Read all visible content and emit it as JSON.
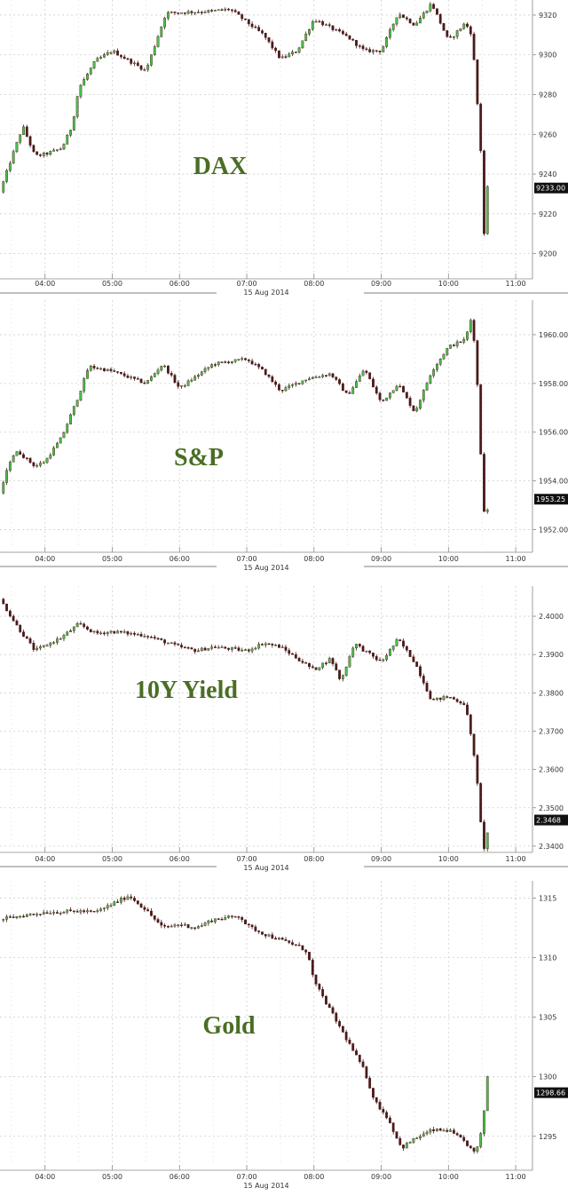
{
  "colors": {
    "up": "#46c24a",
    "down": "#4a1a1a",
    "grid": "#cfcfcf",
    "title": "#4a6e25",
    "axis": "#888888",
    "last_box": "#111111"
  },
  "chart_data": [
    {
      "type": "candlestick",
      "title": "DAX",
      "date_label": "15 Aug 2014",
      "x_ticks": [
        "04:00",
        "05:00",
        "06:00",
        "07:00",
        "08:00",
        "09:00",
        "10:00",
        "11:00"
      ],
      "y_ticks": [
        "9200",
        "9220",
        "9240",
        "9260",
        "9280",
        "9300",
        "9320"
      ],
      "ylim": [
        9190,
        9324
      ],
      "last_value_label": "9233.00",
      "last_value": 9233,
      "grid": true,
      "anchors": [
        [
          3.33,
          9231
        ],
        [
          3.5,
          9248
        ],
        [
          3.67,
          9264
        ],
        [
          3.85,
          9249
        ],
        [
          4.0,
          9250
        ],
        [
          4.25,
          9253
        ],
        [
          4.4,
          9264
        ],
        [
          4.5,
          9283
        ],
        [
          4.75,
          9297
        ],
        [
          5.0,
          9302
        ],
        [
          5.5,
          9292
        ],
        [
          5.8,
          9321
        ],
        [
          6.5,
          9322
        ],
        [
          6.75,
          9323
        ],
        [
          7.25,
          9310
        ],
        [
          7.5,
          9298
        ],
        [
          7.75,
          9302
        ],
        [
          8.0,
          9318
        ],
        [
          8.5,
          9309
        ],
        [
          8.75,
          9302
        ],
        [
          9.0,
          9302
        ],
        [
          9.25,
          9321
        ],
        [
          9.5,
          9315
        ],
        [
          9.75,
          9326
        ],
        [
          10.0,
          9307
        ],
        [
          10.25,
          9316
        ],
        [
          10.35,
          9310
        ],
        [
          10.42,
          9280
        ],
        [
          10.48,
          9252
        ],
        [
          10.53,
          9210
        ],
        [
          10.58,
          9233
        ]
      ]
    },
    {
      "type": "candlestick",
      "title": "S&P",
      "date_label": "15 Aug 2014",
      "x_ticks": [
        "04:00",
        "05:00",
        "06:00",
        "07:00",
        "08:00",
        "09:00",
        "10:00",
        "11:00"
      ],
      "y_ticks": [
        "1952.00",
        "1954.00",
        "1956.00",
        "1958.00",
        "1960.00"
      ],
      "ylim": [
        1951.0,
        1961.2
      ],
      "last_value_label": "1953.25",
      "last_value": 1953.25,
      "grid": true,
      "anchors": [
        [
          3.33,
          1953.5
        ],
        [
          3.5,
          1955.0
        ],
        [
          3.6,
          1955.2
        ],
        [
          3.85,
          1954.6
        ],
        [
          4.0,
          1954.8
        ],
        [
          4.25,
          1955.8
        ],
        [
          4.5,
          1957.5
        ],
        [
          4.65,
          1958.7
        ],
        [
          5.0,
          1958.5
        ],
        [
          5.5,
          1958.0
        ],
        [
          5.75,
          1958.8
        ],
        [
          6.0,
          1957.8
        ],
        [
          6.25,
          1958.3
        ],
        [
          6.5,
          1958.8
        ],
        [
          7.0,
          1959.0
        ],
        [
          7.25,
          1958.5
        ],
        [
          7.5,
          1957.7
        ],
        [
          7.9,
          1958.2
        ],
        [
          8.25,
          1958.4
        ],
        [
          8.5,
          1957.5
        ],
        [
          8.75,
          1958.6
        ],
        [
          9.0,
          1957.2
        ],
        [
          9.25,
          1958.0
        ],
        [
          9.5,
          1956.8
        ],
        [
          9.75,
          1958.5
        ],
        [
          10.0,
          1959.5
        ],
        [
          10.25,
          1959.8
        ],
        [
          10.35,
          1960.8
        ],
        [
          10.42,
          1958.5
        ],
        [
          10.5,
          1954.0
        ],
        [
          10.55,
          1952.0
        ],
        [
          10.6,
          1953.3
        ]
      ]
    },
    {
      "type": "candlestick",
      "title": "10Y Yield",
      "date_label": "15 Aug 2014",
      "x_ticks": [
        "04:00",
        "05:00",
        "06:00",
        "07:00",
        "08:00",
        "09:00",
        "10:00",
        "11:00"
      ],
      "y_ticks": [
        "2.3400",
        "2.3500",
        "2.3600",
        "2.3700",
        "2.3800",
        "2.3900",
        "2.4000"
      ],
      "ylim": [
        2.3365,
        2.4065
      ],
      "last_value_label": "2.3468",
      "last_value": 2.3468,
      "grid": true,
      "anchors": [
        [
          3.33,
          2.4045
        ],
        [
          3.6,
          2.397
        ],
        [
          3.85,
          2.391
        ],
        [
          4.25,
          2.3945
        ],
        [
          4.5,
          2.398
        ],
        [
          4.75,
          2.3955
        ],
        [
          5.0,
          2.396
        ],
        [
          5.5,
          2.395
        ],
        [
          6.0,
          2.392
        ],
        [
          6.25,
          2.391
        ],
        [
          6.5,
          2.392
        ],
        [
          7.0,
          2.391
        ],
        [
          7.25,
          2.393
        ],
        [
          7.5,
          2.392
        ],
        [
          7.75,
          2.389
        ],
        [
          8.0,
          2.386
        ],
        [
          8.25,
          2.389
        ],
        [
          8.4,
          2.383
        ],
        [
          8.6,
          2.393
        ],
        [
          8.75,
          2.391
        ],
        [
          9.0,
          2.388
        ],
        [
          9.25,
          2.394
        ],
        [
          9.5,
          2.388
        ],
        [
          9.75,
          2.378
        ],
        [
          10.0,
          2.379
        ],
        [
          10.25,
          2.377
        ],
        [
          10.4,
          2.362
        ],
        [
          10.5,
          2.342
        ],
        [
          10.55,
          2.338
        ],
        [
          10.6,
          2.3468
        ]
      ]
    },
    {
      "type": "candlestick",
      "title": "Gold",
      "date_label": "15 Aug 2014",
      "x_ticks": [
        "04:00",
        "05:00",
        "06:00",
        "07:00",
        "08:00",
        "09:00",
        "10:00",
        "11:00"
      ],
      "y_ticks": [
        "1295",
        "1300",
        "1305",
        "1310",
        "1315"
      ],
      "ylim": [
        1292.0,
        1316.0
      ],
      "last_value_label": "1298.66",
      "last_value": 1298.66,
      "grid": true,
      "anchors": [
        [
          3.33,
          1313.2
        ],
        [
          3.75,
          1313.6
        ],
        [
          4.0,
          1313.8
        ],
        [
          4.5,
          1313.9
        ],
        [
          4.75,
          1313.8
        ],
        [
          5.0,
          1314.5
        ],
        [
          5.25,
          1315.2
        ],
        [
          5.5,
          1314.0
        ],
        [
          5.75,
          1312.5
        ],
        [
          6.0,
          1312.8
        ],
        [
          6.25,
          1312.5
        ],
        [
          6.5,
          1313.2
        ],
        [
          6.9,
          1313.5
        ],
        [
          7.0,
          1312.7
        ],
        [
          7.25,
          1312.0
        ],
        [
          7.5,
          1311.5
        ],
        [
          7.75,
          1311.0
        ],
        [
          7.9,
          1310.5
        ],
        [
          8.0,
          1308.0
        ],
        [
          8.25,
          1305.5
        ],
        [
          8.5,
          1303.0
        ],
        [
          8.75,
          1300.5
        ],
        [
          8.9,
          1298.0
        ],
        [
          9.1,
          1296.5
        ],
        [
          9.3,
          1294.0
        ],
        [
          9.5,
          1294.8
        ],
        [
          9.75,
          1295.5
        ],
        [
          10.0,
          1295.5
        ],
        [
          10.25,
          1294.5
        ],
        [
          10.4,
          1293.5
        ],
        [
          10.5,
          1295.5
        ],
        [
          10.58,
          1300.0
        ],
        [
          10.62,
          1298.7
        ]
      ]
    }
  ]
}
